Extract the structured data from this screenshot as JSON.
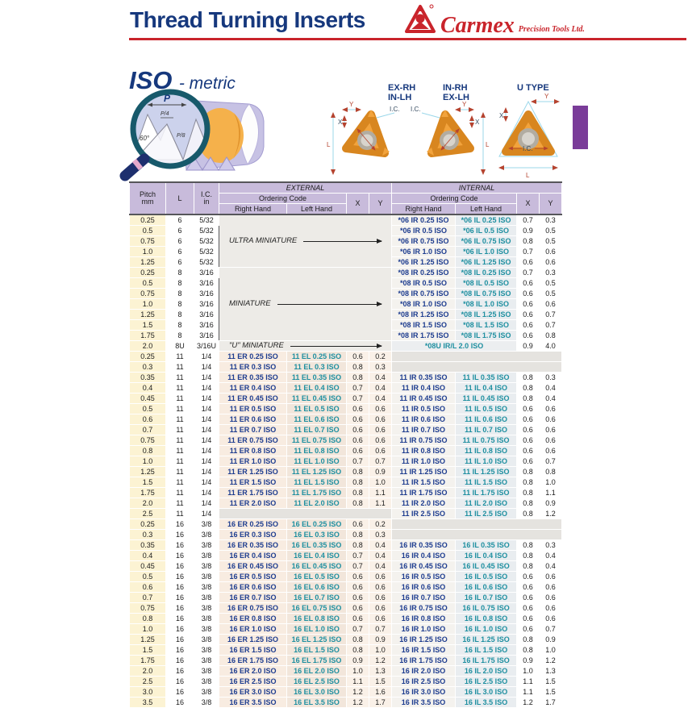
{
  "colors": {
    "title_navy": "#16387d",
    "brand_red": "#c9242b",
    "header_lavender": "#c8bbdb",
    "pitch_cream": "#fcf3d3",
    "code_right_hand_blue": "#1d3c8f",
    "code_left_hand_teal": "#1e8fa0",
    "tab_purple": "#7a3c99",
    "insert_orange": "#f2a33c"
  },
  "header": {
    "title": "Thread Turning Inserts",
    "brand_name": "Carmex",
    "brand_reg": "®",
    "brand_suffix": "Precision Tools Ltd.",
    "section_title": "ISO",
    "section_subtitle": "- metric"
  },
  "magnifier": {
    "p": "P",
    "p4": "P/4",
    "p8": "P/8",
    "angle": "60°"
  },
  "diagrams": {
    "insert1_line1": "EX-RH",
    "insert1_line2": "IN-LH",
    "insert2_line1": "IN-RH",
    "insert2_line2": "EX-LH",
    "insert3_label": "U TYPE",
    "dim_x": "X",
    "dim_y": "Y",
    "dim_ic": "I.C.",
    "dim_l": "L"
  },
  "table": {
    "headers": {
      "pitch": "Pitch",
      "pitch_unit": "mm",
      "l": "L",
      "ic": "I.C.",
      "ic_unit": "in",
      "external": "EXTERNAL",
      "internal": "INTERNAL",
      "ordering_code": "Ordering Code",
      "right_hand": "Right Hand",
      "left_hand": "Left Hand",
      "x": "X",
      "y": "Y"
    },
    "groups": [
      {
        "ext_note": "ULTRA MINIATURE",
        "rows": [
          [
            "0.25",
            "6",
            "5/32",
            null,
            null,
            null,
            null,
            "*06 IR 0.25 ISO",
            "*06 IL 0.25 ISO",
            "0.7",
            "0.3"
          ],
          [
            "0.5",
            "6",
            "5/32",
            null,
            null,
            null,
            null,
            "*06 IR 0.5 ISO",
            "*06 IL 0.5 ISO",
            "0.9",
            "0.5"
          ],
          [
            "0.75",
            "6",
            "5/32",
            null,
            null,
            null,
            null,
            "*06 IR 0.75 ISO",
            "*06 IL 0.75 ISO",
            "0.8",
            "0.5"
          ],
          [
            "1.0",
            "6",
            "5/32",
            null,
            null,
            null,
            null,
            "*06 IR 1.0 ISO",
            "*06 IL 1.0 ISO",
            "0.7",
            "0.6"
          ],
          [
            "1.25",
            "6",
            "5/32",
            null,
            null,
            null,
            null,
            "*06 IR 1.25 ISO",
            "*06 IL 1.25 ISO",
            "0.6",
            "0.6"
          ]
        ]
      },
      {
        "ext_note": "MINIATURE",
        "rows": [
          [
            "0.25",
            "8",
            "3/16",
            null,
            null,
            null,
            null,
            "*08 IR 0.25 ISO",
            "*08 IL 0.25 ISO",
            "0.7",
            "0.3"
          ],
          [
            "0.5",
            "8",
            "3/16",
            null,
            null,
            null,
            null,
            "*08 IR 0.5 ISO",
            "*08 IL 0.5 ISO",
            "0.6",
            "0.5"
          ],
          [
            "0.75",
            "8",
            "3/16",
            null,
            null,
            null,
            null,
            "*08 IR 0.75 ISO",
            "*08 IL 0.75 ISO",
            "0.6",
            "0.5"
          ],
          [
            "1.0",
            "8",
            "3/16",
            null,
            null,
            null,
            null,
            "*08 IR 1.0 ISO",
            "*08 IL 1.0 ISO",
            "0.6",
            "0.6"
          ],
          [
            "1.25",
            "8",
            "3/16",
            null,
            null,
            null,
            null,
            "*08 IR 1.25 ISO",
            "*08 IL 1.25 ISO",
            "0.6",
            "0.7"
          ],
          [
            "1.5",
            "8",
            "3/16",
            null,
            null,
            null,
            null,
            "*08 IR 1.5 ISO",
            "*08 IL 1.5 ISO",
            "0.6",
            "0.7"
          ],
          [
            "1.75",
            "8",
            "3/16",
            null,
            null,
            null,
            null,
            "*08 IR 1.75 ISO",
            "*08 IL 1.75 ISO",
            "0.6",
            "0.8"
          ]
        ]
      },
      {
        "ext_note": "\"U\" MINIATURE",
        "int_merged": "*08U IR/L 2.0 ISO",
        "rows": [
          [
            "2.0",
            "8U",
            "3/16U",
            null,
            null,
            null,
            null,
            null,
            null,
            "0.9",
            "4.0"
          ]
        ]
      },
      {
        "rows": [
          [
            "0.25",
            "11",
            "1/4",
            "11 ER 0.25 ISO",
            "11 EL 0.25 ISO",
            "0.6",
            "0.2",
            null,
            null,
            null,
            null
          ],
          [
            "0.3",
            "11",
            "1/4",
            "11 ER 0.3 ISO",
            "11 EL 0.3 ISO",
            "0.8",
            "0.3",
            null,
            null,
            null,
            null
          ],
          [
            "0.35",
            "11",
            "1/4",
            "11 ER 0.35 ISO",
            "11 EL 0.35 ISO",
            "0.8",
            "0.4",
            "11 IR 0.35 ISO",
            "11 IL 0.35 ISO",
            "0.8",
            "0.3"
          ],
          [
            "0.4",
            "11",
            "1/4",
            "11 ER 0.4 ISO",
            "11 EL 0.4 ISO",
            "0.7",
            "0.4",
            "11 IR 0.4 ISO",
            "11 IL 0.4 ISO",
            "0.8",
            "0.4"
          ],
          [
            "0.45",
            "11",
            "1/4",
            "11 ER 0.45 ISO",
            "11 EL 0.45 ISO",
            "0.7",
            "0.4",
            "11 IR 0.45 ISO",
            "11 IL 0.45 ISO",
            "0.8",
            "0.4"
          ],
          [
            "0.5",
            "11",
            "1/4",
            "11 ER 0.5 ISO",
            "11 EL 0.5 ISO",
            "0.6",
            "0.6",
            "11 IR 0.5 ISO",
            "11 IL 0.5 ISO",
            "0.6",
            "0.6"
          ],
          [
            "0.6",
            "11",
            "1/4",
            "11 ER 0.6 ISO",
            "11 EL 0.6 ISO",
            "0.6",
            "0.6",
            "11 IR 0.6 ISO",
            "11 IL 0.6 ISO",
            "0.6",
            "0.6"
          ],
          [
            "0.7",
            "11",
            "1/4",
            "11 ER 0.7 ISO",
            "11 EL 0.7 ISO",
            "0.6",
            "0.6",
            "11 IR 0.7 ISO",
            "11 IL 0.7 ISO",
            "0.6",
            "0.6"
          ],
          [
            "0.75",
            "11",
            "1/4",
            "11 ER 0.75 ISO",
            "11 EL 0.75 ISO",
            "0.6",
            "0.6",
            "11 IR 0.75 ISO",
            "11 IL 0.75 ISO",
            "0.6",
            "0.6"
          ],
          [
            "0.8",
            "11",
            "1/4",
            "11 ER 0.8 ISO",
            "11 EL 0.8 ISO",
            "0.6",
            "0.6",
            "11 IR 0.8 ISO",
            "11 IL 0.8 ISO",
            "0.6",
            "0.6"
          ],
          [
            "1.0",
            "11",
            "1/4",
            "11 ER 1.0 ISO",
            "11 EL 1.0 ISO",
            "0.7",
            "0.7",
            "11 IR 1.0 ISO",
            "11 IL 1.0 ISO",
            "0.6",
            "0.7"
          ],
          [
            "1.25",
            "11",
            "1/4",
            "11 ER 1.25 ISO",
            "11 EL 1.25 ISO",
            "0.8",
            "0.9",
            "11 IR 1.25 ISO",
            "11 IL 1.25 ISO",
            "0.8",
            "0.8"
          ],
          [
            "1.5",
            "11",
            "1/4",
            "11 ER 1.5 ISO",
            "11 EL 1.5 ISO",
            "0.8",
            "1.0",
            "11 IR 1.5 ISO",
            "11 IL 1.5 ISO",
            "0.8",
            "1.0"
          ],
          [
            "1.75",
            "11",
            "1/4",
            "11 ER 1.75 ISO",
            "11 EL 1.75 ISO",
            "0.8",
            "1.1",
            "11 IR 1.75 ISO",
            "11 IL 1.75 ISO",
            "0.8",
            "1.1"
          ],
          [
            "2.0",
            "11",
            "1/4",
            "11 ER 2.0 ISO",
            "11 EL 2.0 ISO",
            "0.8",
            "1.1",
            "11 IR 2.0 ISO",
            "11 IL 2.0 ISO",
            "0.8",
            "0.9"
          ],
          [
            "2.5",
            "11",
            "1/4",
            null,
            null,
            null,
            null,
            "11 IR 2.5 ISO",
            "11 IL 2.5 ISO",
            "0.8",
            "1.2"
          ]
        ]
      },
      {
        "rows": [
          [
            "0.25",
            "16",
            "3/8",
            "16 ER 0.25 ISO",
            "16 EL 0.25 ISO",
            "0.6",
            "0.2",
            null,
            null,
            null,
            null
          ],
          [
            "0.3",
            "16",
            "3/8",
            "16 ER 0.3 ISO",
            "16 EL 0.3 ISO",
            "0.8",
            "0.3",
            null,
            null,
            null,
            null
          ],
          [
            "0.35",
            "16",
            "3/8",
            "16 ER 0.35 ISO",
            "16 EL 0.35 ISO",
            "0.8",
            "0.4",
            "16 IR 0.35 ISO",
            "16 IL 0.35 ISO",
            "0.8",
            "0.3"
          ],
          [
            "0.4",
            "16",
            "3/8",
            "16 ER 0.4 ISO",
            "16 EL 0.4 ISO",
            "0.7",
            "0.4",
            "16 IR 0.4 ISO",
            "16 IL 0.4 ISO",
            "0.8",
            "0.4"
          ],
          [
            "0.45",
            "16",
            "3/8",
            "16 ER 0.45 ISO",
            "16 EL 0.45 ISO",
            "0.7",
            "0.4",
            "16 IR 0.45 ISO",
            "16 IL 0.45 ISO",
            "0.8",
            "0.4"
          ],
          [
            "0.5",
            "16",
            "3/8",
            "16 ER 0.5 ISO",
            "16 EL 0.5 ISO",
            "0.6",
            "0.6",
            "16 IR 0.5 ISO",
            "16 IL 0.5 ISO",
            "0.6",
            "0.6"
          ],
          [
            "0.6",
            "16",
            "3/8",
            "16 ER 0.6 ISO",
            "16 EL 0.6 ISO",
            "0.6",
            "0.6",
            "16 IR 0.6 ISO",
            "16 IL 0.6 ISO",
            "0.6",
            "0.6"
          ],
          [
            "0.7",
            "16",
            "3/8",
            "16 ER 0.7 ISO",
            "16 EL 0.7 ISO",
            "0.6",
            "0.6",
            "16 IR 0.7 ISO",
            "16 IL 0.7 ISO",
            "0.6",
            "0.6"
          ],
          [
            "0.75",
            "16",
            "3/8",
            "16 ER 0.75 ISO",
            "16 EL 0.75 ISO",
            "0.6",
            "0.6",
            "16 IR 0.75 ISO",
            "16 IL 0.75 ISO",
            "0.6",
            "0.6"
          ],
          [
            "0.8",
            "16",
            "3/8",
            "16 ER 0.8 ISO",
            "16 EL 0.8 ISO",
            "0.6",
            "0.6",
            "16 IR 0.8 ISO",
            "16 IL 0.8 ISO",
            "0.6",
            "0.6"
          ],
          [
            "1.0",
            "16",
            "3/8",
            "16 ER 1.0 ISO",
            "16 EL 1.0 ISO",
            "0.7",
            "0.7",
            "16 IR 1.0 ISO",
            "16 IL 1.0 ISO",
            "0.6",
            "0.7"
          ],
          [
            "1.25",
            "16",
            "3/8",
            "16 ER 1.25 ISO",
            "16 EL 1.25 ISO",
            "0.8",
            "0.9",
            "16 IR 1.25 ISO",
            "16 IL 1.25 ISO",
            "0.8",
            "0.9"
          ],
          [
            "1.5",
            "16",
            "3/8",
            "16 ER 1.5 ISO",
            "16 EL 1.5 ISO",
            "0.8",
            "1.0",
            "16 IR 1.5 ISO",
            "16 IL 1.5 ISO",
            "0.8",
            "1.0"
          ],
          [
            "1.75",
            "16",
            "3/8",
            "16 ER 1.75 ISO",
            "16 EL 1.75 ISO",
            "0.9",
            "1.2",
            "16 IR 1.75 ISO",
            "16 IL 1.75 ISO",
            "0.9",
            "1.2"
          ],
          [
            "2.0",
            "16",
            "3/8",
            "16 ER 2.0 ISO",
            "16 EL 2.0 ISO",
            "1.0",
            "1.3",
            "16 IR 2.0 ISO",
            "16 IL 2.0 ISO",
            "1.0",
            "1.3"
          ],
          [
            "2.5",
            "16",
            "3/8",
            "16 ER 2.5 ISO",
            "16 EL 2.5 ISO",
            "1.1",
            "1.5",
            "16 IR 2.5 ISO",
            "16 IL 2.5 ISO",
            "1.1",
            "1.5"
          ],
          [
            "3.0",
            "16",
            "3/8",
            "16 ER 3.0 ISO",
            "16 EL 3.0 ISO",
            "1.2",
            "1.6",
            "16 IR 3.0 ISO",
            "16 IL 3.0 ISO",
            "1.1",
            "1.5"
          ],
          [
            "3.5",
            "16",
            "3/8",
            "16 ER 3.5 ISO",
            "16 EL 3.5 ISO",
            "1.2",
            "1.7",
            "16 IR 3.5 ISO",
            "16 IL 3.5 ISO",
            "1.2",
            "1.7"
          ]
        ]
      }
    ]
  }
}
